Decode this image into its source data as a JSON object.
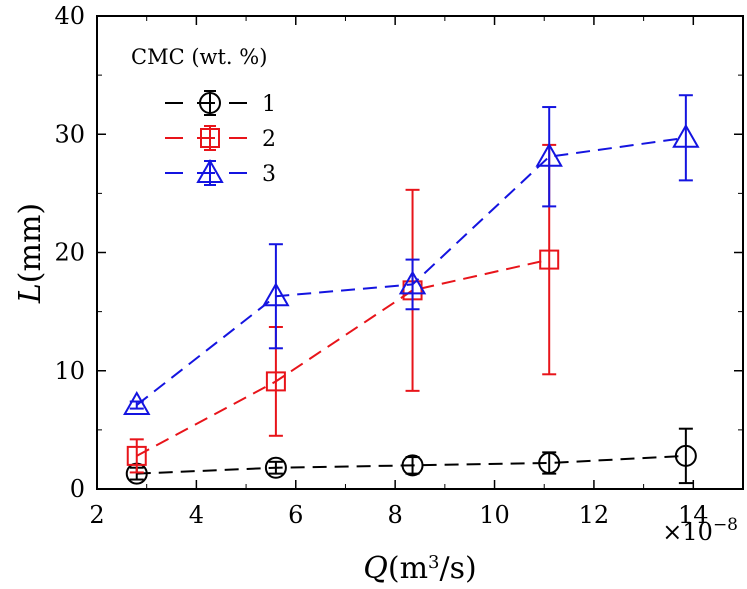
{
  "chart_data": {
    "type": "line",
    "title": "",
    "xlabel_var": "Q",
    "xlabel_unit_open": "(m",
    "xlabel_unit_sup": "3",
    "xlabel_unit_close": "/s)",
    "ylabel_var": "L",
    "ylabel_unit": "(mm)",
    "x_multiplier": "×10",
    "x_multiplier_exp": "−8",
    "xlim": [
      2,
      15
    ],
    "ylim": [
      0,
      40
    ],
    "x_ticks": [
      2,
      4,
      6,
      8,
      10,
      12,
      14
    ],
    "y_ticks": [
      0,
      10,
      20,
      30,
      40
    ],
    "legend_title": "CMC (wt. %)",
    "legend_position": "top-left",
    "series": [
      {
        "name": "1",
        "color": "#000000",
        "marker": "circle",
        "x": [
          2.8,
          5.6,
          8.35,
          11.1,
          13.85
        ],
        "y": [
          1.3,
          1.8,
          2.0,
          2.2,
          2.8
        ],
        "err": [
          0.5,
          0.5,
          0.7,
          0.9,
          2.3
        ]
      },
      {
        "name": "2",
        "color": "#e8141a",
        "marker": "square",
        "x": [
          2.8,
          5.6,
          8.35,
          11.1
        ],
        "y": [
          2.8,
          9.1,
          16.8,
          19.4
        ],
        "err": [
          1.4,
          4.6,
          8.5,
          9.7
        ]
      },
      {
        "name": "3",
        "color": "#1414e0",
        "marker": "triangle",
        "x": [
          2.8,
          5.6,
          8.35,
          11.1,
          13.85
        ],
        "y": [
          7.1,
          16.3,
          17.3,
          28.1,
          29.7
        ],
        "err": [
          0.3,
          4.4,
          2.1,
          4.2,
          3.6
        ]
      }
    ]
  }
}
